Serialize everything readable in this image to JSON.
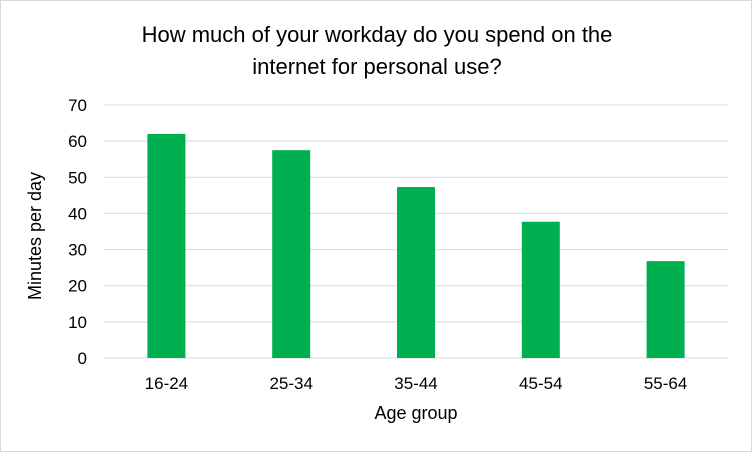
{
  "chart_data": {
    "type": "bar",
    "title_lines": [
      "How much of your workday do you spend on the",
      "internet for personal use?"
    ],
    "xlabel": "Age group",
    "ylabel": "Minutes per day",
    "categories": [
      "16-24",
      "25-34",
      "35-44",
      "45-54",
      "55-64"
    ],
    "values": [
      62,
      57.5,
      47.3,
      37.7,
      26.8
    ],
    "ylim": [
      0,
      70
    ],
    "yticks": [
      0,
      10,
      20,
      30,
      40,
      50,
      60,
      70
    ],
    "grid": true,
    "legend": "none",
    "bar_color": "#00b050",
    "grid_color": "#d9d9d9"
  }
}
